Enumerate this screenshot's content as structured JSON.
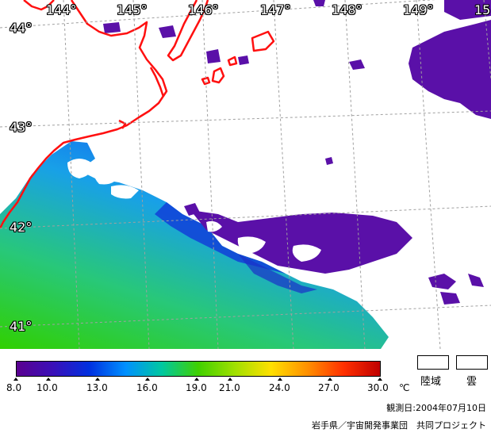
{
  "map": {
    "lon_labels": [
      "144°",
      "145°",
      "146°",
      "147°",
      "148°",
      "149°",
      "15"
    ],
    "lat_labels": [
      "44°",
      "43°",
      "42°",
      "41°"
    ]
  },
  "colorbar": {
    "ticks": [
      "8.0",
      "10.0",
      "13.0",
      "16.0",
      "19.0",
      "21.0",
      "24.0",
      "27.0",
      "30.0"
    ],
    "unit": "℃",
    "colors": [
      "#5a0090",
      "#3a10b8",
      "#0030e0",
      "#0090ff",
      "#00c8a0",
      "#40d000",
      "#a0e000",
      "#ffe000",
      "#ff9000",
      "#ff3000",
      "#c00000"
    ]
  },
  "legend": {
    "land_label": "陸域",
    "cloud_label": "雲"
  },
  "footer": {
    "observation_date": "観測日:2004年07月10日",
    "credit": "岩手県／宇宙開発事業団　共同プロジェクト"
  }
}
